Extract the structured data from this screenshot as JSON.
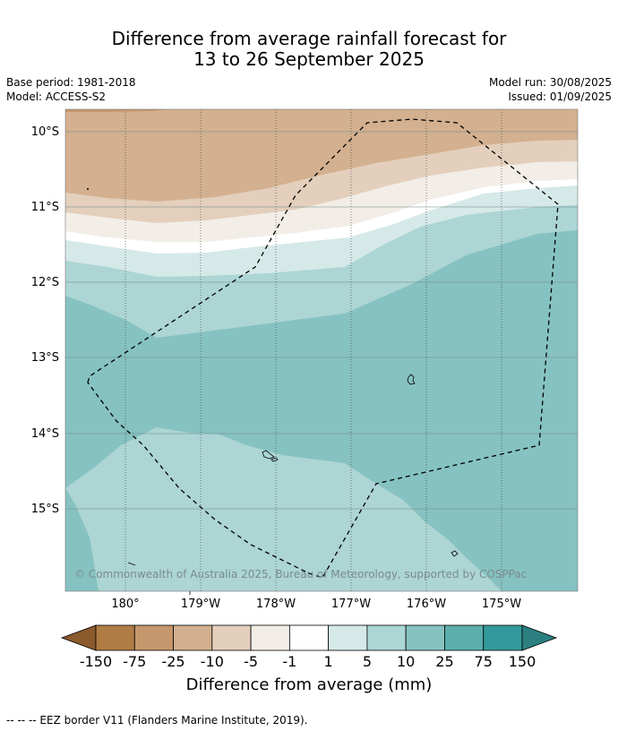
{
  "title": {
    "line1": "Difference from average rainfall forecast for",
    "line2": "13 to 26 September 2025"
  },
  "meta": {
    "base_period": "Base period: 1981-2018",
    "model": "Model: ACCESS-S2",
    "model_run": "Model run: 30/08/2025",
    "issued": "Issued: 01/09/2025"
  },
  "map": {
    "lat_labels": [
      "10°S",
      "11°S",
      "12°S",
      "13°S",
      "14°S",
      "15°S"
    ],
    "lon_labels": [
      "180°",
      "179°W",
      "178°W",
      "177°W",
      "176°W",
      "175°W"
    ],
    "copyright": "© Commonwealth of Australia 2025, Bureau of Meteorology, supported by COSPPac",
    "border_style": "dashed"
  },
  "colorbar": {
    "ticks": [
      "-150",
      "-75",
      "-25",
      "-10",
      "-5",
      "-1",
      "1",
      "5",
      "10",
      "25",
      "75",
      "150"
    ],
    "colors": [
      "#8c5a2c",
      "#b07c45",
      "#c4976c",
      "#d3b08f",
      "#e3cfbc",
      "#f2ede6",
      "#ffffff",
      "#d5e9e8",
      "#acd5d4",
      "#86c2c1",
      "#5baeac",
      "#33999a",
      "#2c7f80"
    ],
    "label": "Difference from average (mm)"
  },
  "footnote": "--  --  -- EEZ border V11 (Flanders Marine Institute, 2019)."
}
